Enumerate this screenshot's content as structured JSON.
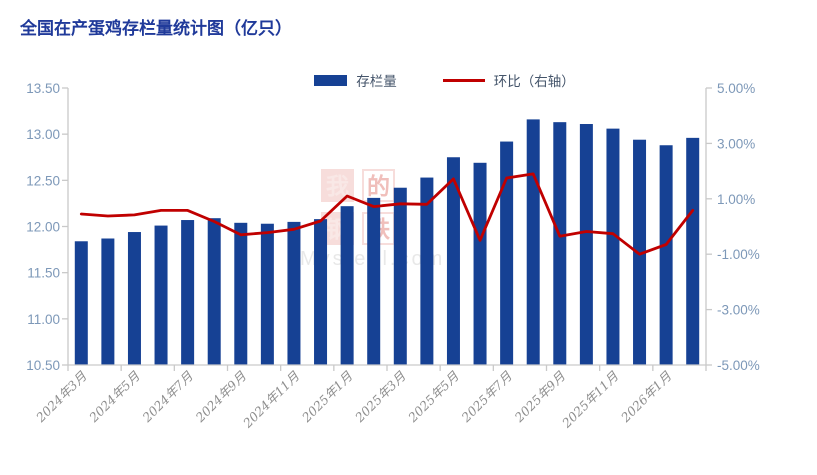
{
  "header": {
    "title": "全国在产蛋鸡存栏量统计图（亿只）",
    "title_color": "#203a9a"
  },
  "legend": [
    {
      "label": "存栏量",
      "type": "bar",
      "color": "#164194"
    },
    {
      "label": "环比（右轴）",
      "type": "line",
      "color": "#c00000"
    }
  ],
  "watermark": {
    "chars": [
      "我",
      "的",
      "钢",
      "铁"
    ],
    "text": "Mysteel.com",
    "accent": "#d23a2e"
  },
  "colors": {
    "bar": "#164194",
    "line": "#c00000",
    "axis": "#c9c9c9",
    "left_tick_text": "#7d98b8",
    "right_tick_text": "#7d98b8",
    "x_tick_text": "#8e8e8e"
  },
  "chart_data": {
    "type": "bar",
    "title": "全国在产蛋鸡存栏量统计图（亿只）",
    "grid": false,
    "legend_position": "top",
    "categories": [
      "2024年3月",
      "2024年4月",
      "2024年5月",
      "2024年6月",
      "2024年7月",
      "2024年8月",
      "2024年9月",
      "2024年10月",
      "2024年11月",
      "2024年12月",
      "2025年1月",
      "2025年2月",
      "2025年3月",
      "2025年4月",
      "2025年5月",
      "2025年6月",
      "2025年7月",
      "2025年8月",
      "2025年9月",
      "2025年10月",
      "2025年11月",
      "2025年12月",
      "2026年1月",
      "2026年2月"
    ],
    "x_tick_labels": [
      "2024年3月",
      "2024年5月",
      "2024年7月",
      "2024年9月",
      "2024年11月",
      "2025年1月",
      "2025年3月",
      "2025年5月",
      "2025年7月",
      "2025年9月",
      "2025年11月",
      "2026年1月"
    ],
    "x_tick_label_indices": [
      0,
      2,
      4,
      6,
      8,
      10,
      12,
      14,
      16,
      18,
      20,
      22
    ],
    "series": [
      {
        "name": "存栏量",
        "type": "bar",
        "axis": "left",
        "color": "#164194",
        "values": [
          11.84,
          11.87,
          11.94,
          12.01,
          12.07,
          12.09,
          12.04,
          12.03,
          12.05,
          12.08,
          12.22,
          12.31,
          12.42,
          12.53,
          12.75,
          12.69,
          12.92,
          13.16,
          13.13,
          13.11,
          13.06,
          12.94,
          12.88,
          12.96
        ]
      },
      {
        "name": "环比（右轴）",
        "type": "line",
        "axis": "right",
        "color": "#c00000",
        "values": [
          0.45,
          0.38,
          0.42,
          0.58,
          0.58,
          0.18,
          -0.3,
          -0.22,
          -0.1,
          0.2,
          1.1,
          0.72,
          0.82,
          0.8,
          1.72,
          -0.5,
          1.75,
          1.9,
          -0.35,
          -0.18,
          -0.26,
          -1.0,
          -0.65,
          0.58
        ]
      }
    ],
    "left_axis": {
      "label": "",
      "min": 10.5,
      "max": 13.5,
      "tick_values": [
        13.5,
        13.0,
        12.5,
        12.0,
        11.5,
        11.0,
        10.5
      ],
      "tick_labels": [
        "13.50",
        "13.00",
        "12.50",
        "12.00",
        "11.50",
        "11.00",
        "10.50"
      ]
    },
    "right_axis": {
      "label": "",
      "min": -5.0,
      "max": 5.0,
      "tick_values": [
        5,
        3,
        1,
        -1,
        -3,
        -5
      ],
      "tick_labels": [
        "5.00%",
        "3.00%",
        "1.00%",
        "-1.00%",
        "-3.00%",
        "-5.00%"
      ]
    }
  }
}
